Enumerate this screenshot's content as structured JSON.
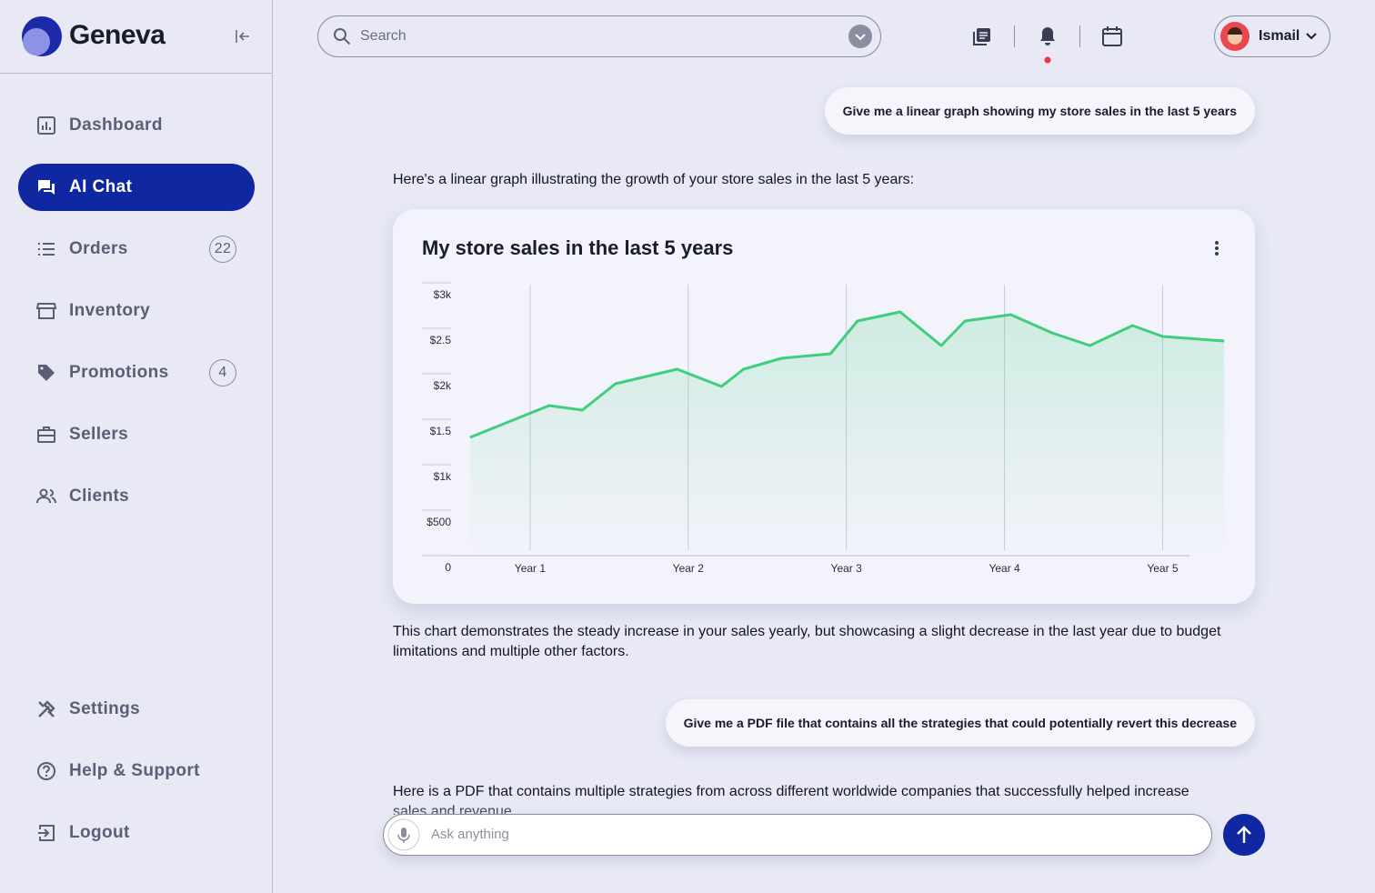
{
  "sidebar": {
    "brand": "Geneva",
    "nav": [
      {
        "label": "Dashboard"
      },
      {
        "label": "AI Chat"
      },
      {
        "label": "Orders",
        "badge": 22
      },
      {
        "label": "Inventory"
      },
      {
        "label": "Promotions",
        "badge": 4
      },
      {
        "label": "Sellers"
      },
      {
        "label": "Clients"
      }
    ],
    "footer": [
      {
        "label": "Settings"
      },
      {
        "label": "Help & Support"
      },
      {
        "label": "Logout"
      }
    ]
  },
  "topbar": {
    "search_placeholder": "Search",
    "user": "Ismail"
  },
  "chat": {
    "prompt_1": "Give me a linear graph showing my store sales in the last 5 years",
    "reply_1": "Here's a linear graph illustrating the growth of your store sales in the last 5 years:",
    "reply_2": "This chart demonstrates the steady increase in your sales yearly, but showcasing a slight decrease in the last year due to budget limitations and multiple other factors.",
    "prompt_2": "Give me a PDF file that contains all the strategies that could potentially revert this decrease",
    "reply_3": "Here is a PDF that contains multiple strategies from across different worldwide companies that successfully helped increase sales and revenue.",
    "input_placeholder": "Ask anything"
  },
  "chart_data": {
    "type": "area",
    "title": "My store sales in the last 5 years",
    "x": [
      0.62,
      1.12,
      1.33,
      1.54,
      1.93,
      2.21,
      2.35,
      2.59,
      2.9,
      3.07,
      3.34,
      3.6,
      3.75,
      4.04,
      4.3,
      4.54,
      4.81,
      5.0,
      5.39
    ],
    "values": [
      1300,
      1650,
      1600,
      1890,
      2050,
      1860,
      2050,
      2170,
      2220,
      2580,
      2680,
      2310,
      2580,
      2650,
      2450,
      2310,
      2530,
      2410,
      2360
    ],
    "color": "#3ecf7e",
    "xlim": [
      0.5,
      5.4
    ],
    "xticks": [
      {
        "value": 1,
        "label": "Year 1"
      },
      {
        "value": 2,
        "label": "Year 2"
      },
      {
        "value": 3,
        "label": "Year 3"
      },
      {
        "value": 4,
        "label": "Year 4"
      },
      {
        "value": 5,
        "label": "Year 5"
      }
    ],
    "ylim": [
      0,
      3000
    ],
    "yticks": [
      0,
      {
        "value": 500,
        "label": "$500"
      },
      {
        "value": 1000,
        "label": "$1k"
      },
      {
        "value": 1500,
        "label": "$1.5"
      },
      {
        "value": 2000,
        "label": "$2k"
      },
      {
        "value": 2500,
        "label": "$2.5"
      },
      {
        "value": 3000,
        "label": "$3k"
      }
    ],
    "grid": "x"
  }
}
